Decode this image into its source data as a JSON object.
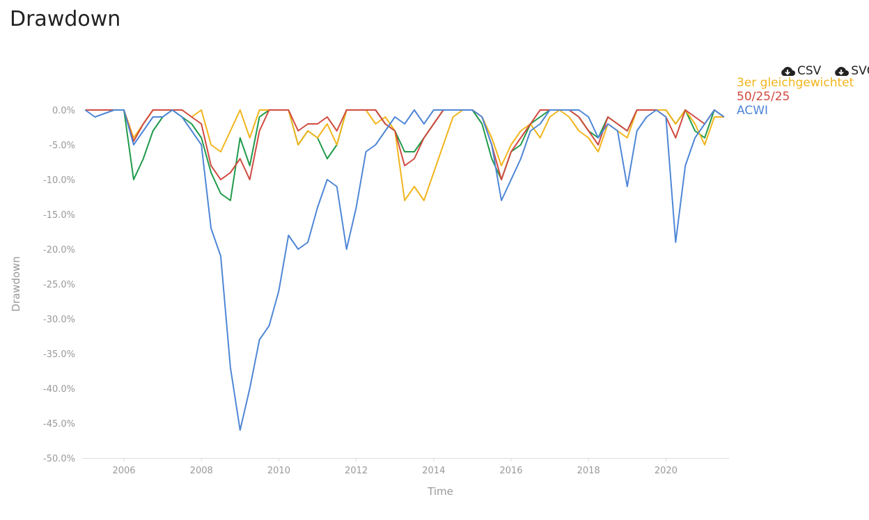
{
  "title": "Drawdown",
  "toolbar": {
    "buttons": [
      "CSV",
      "SVG"
    ]
  },
  "chart_data": {
    "type": "line",
    "x_label": "Time",
    "y_label": "Drawdown",
    "x": [
      2005,
      2005.25,
      2005.5,
      2005.75,
      2006,
      2006.25,
      2006.5,
      2006.75,
      2007,
      2007.25,
      2007.5,
      2007.75,
      2008,
      2008.25,
      2008.5,
      2008.75,
      2009,
      2009.25,
      2009.5,
      2009.75,
      2010,
      2010.25,
      2010.5,
      2010.75,
      2011,
      2011.25,
      2011.5,
      2011.75,
      2012,
      2012.25,
      2012.5,
      2012.75,
      2013,
      2013.25,
      2013.5,
      2013.75,
      2014,
      2014.25,
      2014.5,
      2014.75,
      2015,
      2015.25,
      2015.5,
      2015.75,
      2016,
      2016.25,
      2016.5,
      2016.75,
      2017,
      2017.25,
      2017.5,
      2017.75,
      2018,
      2018.25,
      2018.5,
      2018.75,
      2019,
      2019.25,
      2019.5,
      2019.75,
      2020,
      2020.25,
      2020.5,
      2020.75,
      2021,
      2021.25,
      2021.5
    ],
    "series": [
      {
        "name": "3er gleichgewichtet",
        "color": "#f1b51c",
        "values": [
          0,
          0,
          0,
          0,
          0,
          -4,
          -2,
          0,
          0,
          0,
          0,
          -1,
          0,
          -5,
          -6,
          -3,
          0,
          -4,
          0,
          0,
          0,
          0,
          -5,
          -3,
          -4,
          -2,
          -5,
          0,
          0,
          0,
          -2,
          -1,
          -3,
          -13,
          -11,
          -13,
          -9,
          -5,
          -1,
          0,
          0,
          -1,
          -4,
          -8,
          -5,
          -3,
          -2,
          -4,
          -1,
          0,
          -1,
          -3,
          -4,
          -6,
          -2,
          -3,
          -4,
          0,
          0,
          0,
          0,
          -2,
          0,
          -2,
          -5,
          -1,
          -1
        ]
      },
      {
        "name": "50/25/25",
        "color": "#d04a3f",
        "values": [
          0,
          0,
          0,
          0,
          0,
          -4.5,
          -2,
          0,
          0,
          0,
          0,
          -1,
          -2,
          -8,
          -10,
          -9,
          -7,
          -10,
          -3,
          0,
          0,
          0,
          -3,
          -2,
          -2,
          -1,
          -3,
          0,
          0,
          0,
          0,
          -2,
          -3,
          -8,
          -7,
          -4,
          -2,
          0,
          0,
          0,
          0,
          -1,
          -5,
          -10,
          -6,
          -4,
          -2,
          0,
          0,
          0,
          0,
          -1,
          -3,
          -5,
          -1,
          -2,
          -3,
          0,
          0,
          0,
          -1,
          -4,
          0,
          -1,
          -2,
          0,
          -1
        ]
      },
      {
        "name": "ACWI",
        "color": "#4e86d6",
        "values": [
          0,
          -1,
          -0.5,
          0,
          0,
          -5,
          -3,
          -1,
          -1,
          0,
          -1,
          -3,
          -5,
          -17,
          -21,
          -37,
          -46,
          -40,
          -33,
          -31,
          -26,
          -18,
          -20,
          -19,
          -14,
          -10,
          -11,
          -20,
          -14,
          -6,
          -5,
          -3,
          -1,
          -2,
          0,
          -2,
          0,
          0,
          0,
          0,
          0,
          -1,
          -5,
          -13,
          -10,
          -7,
          -3,
          -2,
          0,
          0,
          0,
          0,
          -1,
          -4,
          -2,
          -3,
          -11,
          -3,
          -1,
          0,
          -1,
          -19,
          -8,
          -4,
          -2,
          0,
          -1
        ]
      },
      {
        "color": "#1f9a4a",
        "values": [
          0,
          0,
          0,
          0,
          0,
          -10,
          -7,
          -3,
          -1,
          0,
          -1,
          -2,
          -4,
          -9,
          -12,
          -13,
          -4,
          -8,
          -1,
          0,
          0,
          0,
          -5,
          -3,
          -4,
          -7,
          -5,
          0,
          0,
          0,
          0,
          -2,
          -3,
          -6,
          -6,
          -4,
          -2,
          0,
          0,
          0,
          0,
          -2,
          -7,
          -10,
          -6,
          -5,
          -2,
          -1,
          0,
          0,
          0,
          -1,
          -3,
          -4,
          -1,
          -2,
          -3,
          0,
          0,
          0,
          0,
          -2,
          0,
          -3,
          -4,
          0,
          -1
        ]
      }
    ],
    "xlim": [
      2004.92,
      2021.63
    ],
    "xticks": [
      2006,
      2008,
      2010,
      2012,
      2014,
      2016,
      2018,
      2020
    ],
    "ylim": [
      -50,
      0
    ],
    "yticks": [
      {
        "value": 0,
        "label": "0.0%"
      },
      {
        "value": -5,
        "label": "-5.0%"
      },
      {
        "value": -10,
        "label": "-10.0%"
      },
      {
        "value": -15,
        "label": "-15.0%"
      },
      {
        "value": -20,
        "label": "-20.0%"
      },
      {
        "value": -25,
        "label": "-25.0%"
      },
      {
        "value": -30,
        "label": "-30.0%"
      },
      {
        "value": -35,
        "label": "-35.0%"
      },
      {
        "value": -40,
        "label": "-40.0%"
      },
      {
        "value": -45,
        "label": "-45.0%"
      },
      {
        "value": -50,
        "label": "-50.0%"
      }
    ],
    "grid": false
  }
}
